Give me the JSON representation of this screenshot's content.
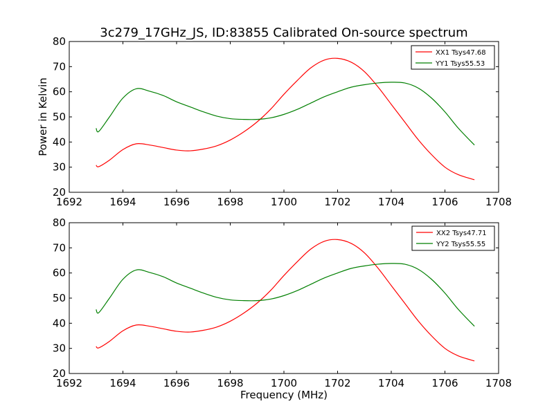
{
  "figure": {
    "title": "3c279_17GHz_JS, ID:83855 Calibrated On-source spectrum"
  },
  "colors": {
    "xx": "#ff0000",
    "yy": "#007f00",
    "axis": "#000000",
    "background": "#ffffff"
  },
  "chart_data": [
    {
      "type": "line",
      "title": "3c279_17GHz_JS, ID:83855 Calibrated On-source spectrum",
      "xlabel": "",
      "ylabel": "Power in Kelvin",
      "xlim": [
        1692,
        1708
      ],
      "ylim": [
        20,
        80
      ],
      "xticks": [
        1692,
        1694,
        1696,
        1698,
        1700,
        1702,
        1704,
        1706,
        1708
      ],
      "yticks": [
        20,
        30,
        40,
        50,
        60,
        70,
        80
      ],
      "grid": false,
      "legend_position": "top-right",
      "series": [
        {
          "name": "XX1 Tsys47.68",
          "color": "#ff0000",
          "x": [
            1693.0,
            1693.1,
            1693.5,
            1694.0,
            1694.5,
            1695.0,
            1695.5,
            1696.0,
            1696.5,
            1697.0,
            1697.5,
            1698.0,
            1698.5,
            1699.0,
            1699.5,
            1700.0,
            1700.5,
            1701.0,
            1701.5,
            1702.0,
            1702.5,
            1703.0,
            1703.5,
            1704.0,
            1704.5,
            1705.0,
            1705.5,
            1706.0,
            1706.5,
            1707.1
          ],
          "y": [
            30.8,
            30.2,
            32.8,
            37.0,
            39.3,
            38.8,
            37.8,
            36.8,
            36.5,
            37.2,
            38.5,
            40.8,
            44.0,
            48.0,
            53.0,
            59.0,
            64.5,
            69.5,
            72.6,
            73.3,
            71.8,
            68.0,
            62.0,
            55.0,
            48.0,
            41.0,
            35.0,
            30.0,
            27.0,
            25.0
          ]
        },
        {
          "name": "YY1 Tsys55.53",
          "color": "#007f00",
          "x": [
            1693.0,
            1693.1,
            1693.5,
            1694.0,
            1694.5,
            1695.0,
            1695.5,
            1696.0,
            1696.5,
            1697.0,
            1697.5,
            1698.0,
            1698.5,
            1699.0,
            1699.5,
            1700.0,
            1700.5,
            1701.0,
            1701.5,
            1702.0,
            1702.5,
            1703.0,
            1703.5,
            1704.0,
            1704.5,
            1705.0,
            1705.5,
            1706.0,
            1706.5,
            1707.1
          ],
          "y": [
            45.5,
            44.2,
            50.0,
            57.5,
            61.2,
            60.2,
            58.5,
            56.0,
            54.0,
            52.0,
            50.3,
            49.3,
            49.0,
            49.0,
            49.6,
            51.0,
            53.0,
            55.5,
            58.0,
            60.0,
            61.8,
            62.8,
            63.5,
            63.8,
            63.5,
            61.5,
            57.5,
            52.0,
            45.5,
            38.8
          ]
        }
      ]
    },
    {
      "type": "line",
      "title": "",
      "xlabel": "Frequency (MHz)",
      "ylabel": "",
      "xlim": [
        1692,
        1708
      ],
      "ylim": [
        20,
        80
      ],
      "xticks": [
        1692,
        1694,
        1696,
        1698,
        1700,
        1702,
        1704,
        1706,
        1708
      ],
      "yticks": [
        20,
        30,
        40,
        50,
        60,
        70,
        80
      ],
      "grid": false,
      "legend_position": "top-right",
      "series": [
        {
          "name": "XX2 Tsys47.71",
          "color": "#ff0000",
          "x": [
            1693.0,
            1693.1,
            1693.5,
            1694.0,
            1694.5,
            1695.0,
            1695.5,
            1696.0,
            1696.5,
            1697.0,
            1697.5,
            1698.0,
            1698.5,
            1699.0,
            1699.5,
            1700.0,
            1700.5,
            1701.0,
            1701.5,
            1702.0,
            1702.5,
            1703.0,
            1703.5,
            1704.0,
            1704.5,
            1705.0,
            1705.5,
            1706.0,
            1706.5,
            1707.1
          ],
          "y": [
            30.8,
            30.2,
            32.8,
            37.0,
            39.3,
            38.8,
            37.8,
            36.8,
            36.5,
            37.2,
            38.5,
            40.8,
            44.0,
            48.0,
            53.0,
            59.0,
            64.5,
            69.5,
            72.6,
            73.3,
            71.8,
            68.0,
            62.0,
            55.0,
            48.0,
            41.0,
            35.0,
            30.0,
            27.0,
            25.0
          ]
        },
        {
          "name": "YY2 Tsys55.55",
          "color": "#007f00",
          "x": [
            1693.0,
            1693.1,
            1693.5,
            1694.0,
            1694.5,
            1695.0,
            1695.5,
            1696.0,
            1696.5,
            1697.0,
            1697.5,
            1698.0,
            1698.5,
            1699.0,
            1699.5,
            1700.0,
            1700.5,
            1701.0,
            1701.5,
            1702.0,
            1702.5,
            1703.0,
            1703.5,
            1704.0,
            1704.5,
            1705.0,
            1705.5,
            1706.0,
            1706.5,
            1707.1
          ],
          "y": [
            45.5,
            44.2,
            50.0,
            57.5,
            61.2,
            60.2,
            58.5,
            56.0,
            54.0,
            52.0,
            50.3,
            49.3,
            49.0,
            49.0,
            49.6,
            51.0,
            53.0,
            55.5,
            58.0,
            60.0,
            61.8,
            62.8,
            63.5,
            63.8,
            63.5,
            61.5,
            57.5,
            52.0,
            45.5,
            38.8
          ]
        }
      ]
    }
  ]
}
